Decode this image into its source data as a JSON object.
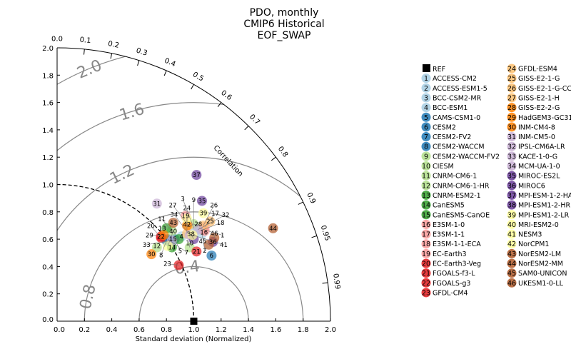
{
  "chart_data": {
    "type": "scatter",
    "subtype": "taylor-diagram",
    "title": [
      "PDO, monthly",
      "CMIP6 Historical",
      "EOF_SWAP"
    ],
    "xlabel": "Standard deviation (Normalized)",
    "correlation_label": "Correlation",
    "xlim": [
      0,
      2.0
    ],
    "ylim": [
      0,
      2.0
    ],
    "x_ticks": [
      "0.0",
      "0.2",
      "0.4",
      "0.6",
      "0.8",
      "1.0",
      "1.2",
      "1.4",
      "1.6",
      "1.8",
      "2.0"
    ],
    "y_ticks": [
      "0.0",
      "0.2",
      "0.4",
      "0.6",
      "0.8",
      "1.0",
      "1.2",
      "1.4",
      "1.6",
      "1.8",
      "2.0"
    ],
    "correlation_ticks": [
      "0.0",
      "0.1",
      "0.2",
      "0.3",
      "0.4",
      "0.5",
      "0.6",
      "0.7",
      "0.8",
      "0.9",
      "0.95",
      "0.99"
    ],
    "rms_contours": [
      "0.4",
      "0.8",
      "1.2",
      "1.6",
      "2.0"
    ],
    "reference": {
      "label": "REF",
      "x": 1.0,
      "y": 0.0
    },
    "models": [
      {
        "id": "1",
        "name": "ACCESS-CM2",
        "color": "#a6cee3",
        "x": 1.04,
        "y": 0.68
      },
      {
        "id": "2",
        "name": "ACCESS-ESM1-5",
        "color": "#a6cee3",
        "x": 1.06,
        "y": 0.64
      },
      {
        "id": "3",
        "name": "BCC-CSM2-MR",
        "color": "#a6cee3",
        "x": 1.0,
        "y": 0.68
      },
      {
        "id": "4",
        "name": "BCC-ESM1",
        "color": "#a6cee3",
        "x": 0.91,
        "y": 0.62
      },
      {
        "id": "5",
        "name": "CAMS-CSM1-0",
        "color": "#1f78b4",
        "x": 0.86,
        "y": 0.6
      },
      {
        "id": "6",
        "name": "CESM2",
        "color": "#1f78b4",
        "x": 1.13,
        "y": 0.48
      },
      {
        "id": "7",
        "name": "CESM2-FV2",
        "color": "#1f78b4",
        "x": 0.81,
        "y": 0.6
      },
      {
        "id": "8",
        "name": "CESM2-WACCM",
        "color": "#1f78b4",
        "x": 0.8,
        "y": 0.59
      },
      {
        "id": "9",
        "name": "CESM2-WACCM-FV2",
        "color": "#b2df8a",
        "x": 1.0,
        "y": 0.71
      },
      {
        "id": "10",
        "name": "CIESM",
        "color": "#b2df8a",
        "x": 0.97,
        "y": 0.54
      },
      {
        "id": "11",
        "name": "CNRM-CM6-1",
        "color": "#b2df8a",
        "x": 0.84,
        "y": 0.66
      },
      {
        "id": "12",
        "name": "CNRM-CM6-1-HR",
        "color": "#b2df8a",
        "x": 0.73,
        "y": 0.54
      },
      {
        "id": "13",
        "name": "CNRM-ESM2-1",
        "color": "#33a02c",
        "x": 0.8,
        "y": 0.68
      },
      {
        "id": "14",
        "name": "CanESM5",
        "color": "#33a02c",
        "x": 0.84,
        "y": 0.54
      },
      {
        "id": "15",
        "name": "CanESM5-CanOE",
        "color": "#33a02c",
        "x": 0.89,
        "y": 0.6
      },
      {
        "id": "16",
        "name": "E3SM-1-0",
        "color": "#fb9a99",
        "x": 1.08,
        "y": 0.66
      },
      {
        "id": "17",
        "name": "E3SM-1-1",
        "color": "#fb9a99",
        "x": 1.08,
        "y": 0.69
      },
      {
        "id": "18",
        "name": "E3SM-1-1-ECA",
        "color": "#fb9a99",
        "x": 1.07,
        "y": 0.67
      },
      {
        "id": "19",
        "name": "EC-Earth3",
        "color": "#fb9a99",
        "x": 0.94,
        "y": 0.77
      },
      {
        "id": "20",
        "name": "EC-Earth3-Veg",
        "color": "#e31a1c",
        "x": 0.76,
        "y": 0.61
      },
      {
        "id": "21",
        "name": "FGOALS-f3-L",
        "color": "#e31a1c",
        "x": 1.02,
        "y": 0.51
      },
      {
        "id": "22",
        "name": "FGOALS-g3",
        "color": "#e31a1c",
        "x": 0.76,
        "y": 0.62
      },
      {
        "id": "23",
        "name": "GFDL-CM4",
        "color": "#e31a1c",
        "x": 0.89,
        "y": 0.41
      },
      {
        "id": "24",
        "name": "GFDL-ESM4",
        "color": "#fdbf6f",
        "x": 0.95,
        "y": 0.64
      },
      {
        "id": "25",
        "name": "GISS-E2-1-G",
        "color": "#fdbf6f",
        "x": 1.12,
        "y": 0.73
      },
      {
        "id": "26",
        "name": "GISS-E2-1-G-CC",
        "color": "#fdbf6f",
        "x": 1.07,
        "y": 0.7
      },
      {
        "id": "27",
        "name": "GISS-E2-1-H",
        "color": "#fdbf6f",
        "x": 0.96,
        "y": 0.7
      },
      {
        "id": "28",
        "name": "GISS-E2-2-G",
        "color": "#ff7f00",
        "x": 0.95,
        "y": 0.7
      },
      {
        "id": "29",
        "name": "HadGEM3-GC31-LL",
        "color": "#ff7f00",
        "x": 0.78,
        "y": 0.63
      },
      {
        "id": "30",
        "name": "INM-CM4-8",
        "color": "#ff7f00",
        "x": 0.69,
        "y": 0.49
      },
      {
        "id": "31",
        "name": "INM-CM5-0",
        "color": "#cab2d6",
        "x": 0.73,
        "y": 0.86
      },
      {
        "id": "32",
        "name": "IPSL-CM6A-LR",
        "color": "#cab2d6",
        "x": 1.03,
        "y": 0.67
      },
      {
        "id": "33",
        "name": "KACE-1-0-G",
        "color": "#cab2d6",
        "x": 0.84,
        "y": 0.59
      },
      {
        "id": "34",
        "name": "MCM-UA-1-0",
        "color": "#cab2d6",
        "x": 0.97,
        "y": 0.63
      },
      {
        "id": "35",
        "name": "MIROC-ES2L",
        "color": "#6a3d9a",
        "x": 1.06,
        "y": 0.88
      },
      {
        "id": "36",
        "name": "MIROC6",
        "color": "#6a3d9a",
        "x": 1.14,
        "y": 0.58
      },
      {
        "id": "37",
        "name": "MPI-ESM-1-2-HAM",
        "color": "#6a3d9a",
        "x": 1.02,
        "y": 1.07
      },
      {
        "id": "38",
        "name": "MPI-ESM1-2-HR",
        "color": "#6a3d9a",
        "x": 1.0,
        "y": 0.6
      },
      {
        "id": "39",
        "name": "MPI-ESM1-2-LR",
        "color": "#ffff99",
        "x": 1.07,
        "y": 0.79
      },
      {
        "id": "40",
        "name": "MRI-ESM2-0",
        "color": "#ffff99",
        "x": 0.81,
        "y": 0.55
      },
      {
        "id": "41",
        "name": "NESM3",
        "color": "#ffff99",
        "x": 0.99,
        "y": 0.63
      },
      {
        "id": "42",
        "name": "NorCPM1",
        "color": "#ffff99",
        "x": 0.95,
        "y": 0.75
      },
      {
        "id": "43",
        "name": "NorESM2-LM",
        "color": "#b15928",
        "x": 0.85,
        "y": 0.72
      },
      {
        "id": "44",
        "name": "NorESM2-MM",
        "color": "#b15928",
        "x": 1.58,
        "y": 0.68
      },
      {
        "id": "45",
        "name": "SAM0-UNICON",
        "color": "#b15928",
        "x": 1.11,
        "y": 0.56
      },
      {
        "id": "46",
        "name": "UKESM1-0-LL",
        "color": "#b15928",
        "x": 1.15,
        "y": 0.61
      }
    ]
  }
}
